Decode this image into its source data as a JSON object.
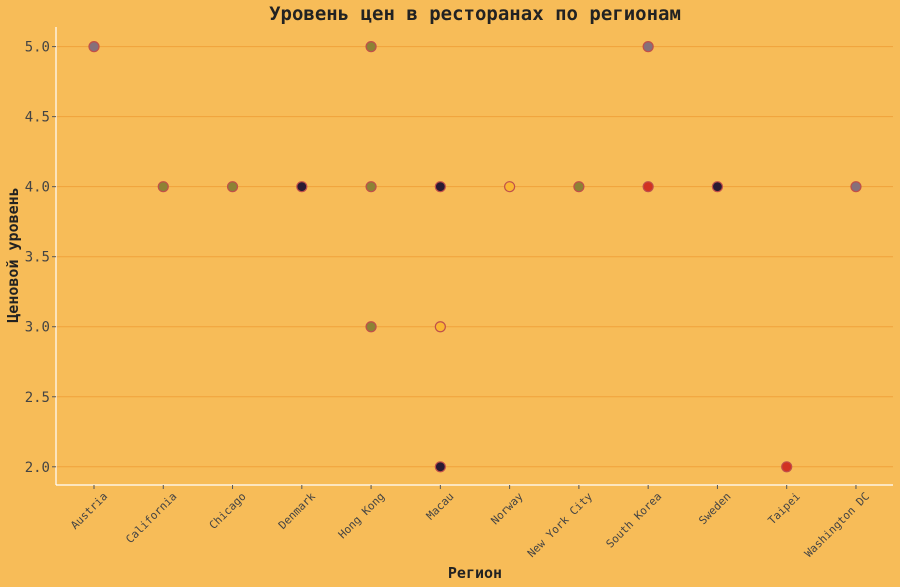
{
  "chart_data": {
    "type": "scatter",
    "title": "Уровень цен в ресторанах по регионам",
    "xlabel": "Регион",
    "ylabel": "Ценовой уровень",
    "categories": [
      "Austria",
      "California",
      "Chicago",
      "Denmark",
      "Hong Kong",
      "Macau",
      "Norway",
      "New York City",
      "South Korea",
      "Sweden",
      "Taipei",
      "Washington DC"
    ],
    "ylim": [
      1.87,
      5.14
    ],
    "yticks": [
      2.0,
      2.5,
      3.0,
      3.5,
      4.0,
      4.5,
      5.0
    ],
    "ytick_labels": [
      "2.0",
      "2.5",
      "3.0",
      "3.5",
      "4.0",
      "4.5",
      "5.0"
    ],
    "grid": true,
    "colors": {
      "background": "#f7bc58",
      "grid": "#f0a23a",
      "point_styles": {
        "gray": {
          "fill": "#86707a",
          "stroke": "#c0504a"
        },
        "olive": {
          "fill": "#8c8235",
          "stroke": "#c0504a"
        },
        "navy": {
          "fill": "#2a1a33",
          "stroke": "#c0504a"
        },
        "yellow": {
          "fill": "#fab733",
          "stroke": "#c0504a"
        },
        "red": {
          "fill": "#d13222",
          "stroke": "#c0504a"
        }
      }
    },
    "points": [
      {
        "x": "Austria",
        "y": 5.0,
        "style": "gray"
      },
      {
        "x": "California",
        "y": 4.0,
        "style": "olive"
      },
      {
        "x": "Chicago",
        "y": 4.0,
        "style": "olive"
      },
      {
        "x": "Denmark",
        "y": 4.0,
        "style": "navy"
      },
      {
        "x": "Hong Kong",
        "y": 5.0,
        "style": "olive"
      },
      {
        "x": "Hong Kong",
        "y": 4.0,
        "style": "olive"
      },
      {
        "x": "Hong Kong",
        "y": 3.0,
        "style": "olive"
      },
      {
        "x": "Macau",
        "y": 4.0,
        "style": "navy"
      },
      {
        "x": "Macau",
        "y": 3.0,
        "style": "yellow"
      },
      {
        "x": "Macau",
        "y": 2.0,
        "style": "navy"
      },
      {
        "x": "Norway",
        "y": 4.0,
        "style": "yellow"
      },
      {
        "x": "New York City",
        "y": 4.0,
        "style": "olive"
      },
      {
        "x": "South Korea",
        "y": 5.0,
        "style": "gray"
      },
      {
        "x": "South Korea",
        "y": 4.0,
        "style": "red"
      },
      {
        "x": "Sweden",
        "y": 4.0,
        "style": "navy"
      },
      {
        "x": "Taipei",
        "y": 2.0,
        "style": "red"
      },
      {
        "x": "Washington DC",
        "y": 4.0,
        "style": "gray"
      }
    ]
  }
}
